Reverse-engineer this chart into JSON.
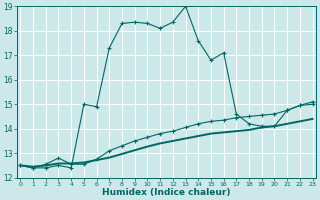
{
  "xlabel": "Humidex (Indice chaleur)",
  "bg_color": "#cce8e8",
  "grid_color": "#ffffff",
  "line_color": "#006666",
  "xmin": 0,
  "xmax": 23,
  "ymin": 12,
  "ymax": 19,
  "line1_x": [
    0,
    1,
    2,
    3,
    4,
    5,
    6,
    7,
    8,
    9,
    10,
    11,
    12,
    13,
    14,
    15,
    16,
    17,
    18,
    19,
    20,
    21,
    22,
    23
  ],
  "line1_y": [
    12.5,
    12.4,
    12.4,
    12.5,
    12.4,
    15.0,
    14.9,
    17.3,
    18.3,
    18.35,
    18.3,
    18.1,
    18.35,
    19.0,
    17.6,
    16.8,
    17.1,
    14.6,
    14.2,
    14.1,
    14.1,
    14.75,
    14.95,
    15.1
  ],
  "line2_x": [
    0,
    1,
    2,
    3,
    4,
    5,
    6,
    7,
    8,
    9,
    10,
    11,
    12,
    13,
    14,
    15,
    16,
    17,
    18,
    19,
    20,
    21,
    22,
    23
  ],
  "line2_y": [
    12.5,
    12.4,
    12.55,
    12.8,
    12.55,
    12.55,
    12.75,
    13.1,
    13.3,
    13.5,
    13.65,
    13.8,
    13.9,
    14.05,
    14.2,
    14.3,
    14.35,
    14.45,
    14.5,
    14.55,
    14.6,
    14.75,
    14.95,
    15.0
  ],
  "line3_x": [
    0,
    1,
    2,
    3,
    4,
    5,
    6,
    7,
    8,
    9,
    10,
    11,
    12,
    13,
    14,
    15,
    16,
    17,
    18,
    19,
    20,
    21,
    22,
    23
  ],
  "line3_y": [
    12.5,
    12.45,
    12.5,
    12.58,
    12.58,
    12.62,
    12.72,
    12.82,
    12.97,
    13.12,
    13.27,
    13.4,
    13.5,
    13.6,
    13.7,
    13.8,
    13.85,
    13.9,
    13.95,
    14.05,
    14.1,
    14.2,
    14.3,
    14.4
  ]
}
